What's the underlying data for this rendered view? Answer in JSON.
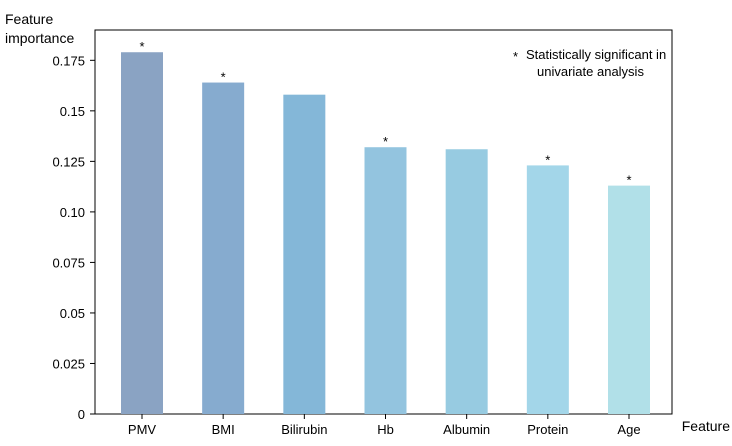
{
  "chart_data": {
    "type": "bar",
    "title": "",
    "ylabel_lines": [
      "Feature",
      "importance"
    ],
    "xlabel": "Feature",
    "categories": [
      "PMV",
      "BMI",
      "Bilirubin",
      "Hb",
      "Albumin",
      "Protein",
      "Age"
    ],
    "values": [
      0.179,
      0.164,
      0.158,
      0.132,
      0.131,
      0.123,
      0.113
    ],
    "significant": [
      true,
      true,
      false,
      true,
      false,
      true,
      true
    ],
    "significance_marker": "*",
    "ylim": [
      0,
      0.19
    ],
    "yticks": [
      0,
      0.025,
      0.05,
      0.075,
      0.1,
      0.125,
      0.15,
      0.175
    ],
    "ytick_labels": [
      "0",
      "0.025",
      "0.05",
      "0.075",
      "0.10",
      "0.125",
      "0.15",
      "0.175"
    ],
    "bar_colors": [
      "#8aa3c3",
      "#86abcf",
      "#84b7d8",
      "#93c4df",
      "#97cbe1",
      "#a3d6e9",
      "#b1e0e8"
    ],
    "legend": {
      "marker": "*",
      "lines": [
        "Statistically significant in",
        "univariate analysis"
      ],
      "position": "top-right"
    },
    "grid": false
  }
}
